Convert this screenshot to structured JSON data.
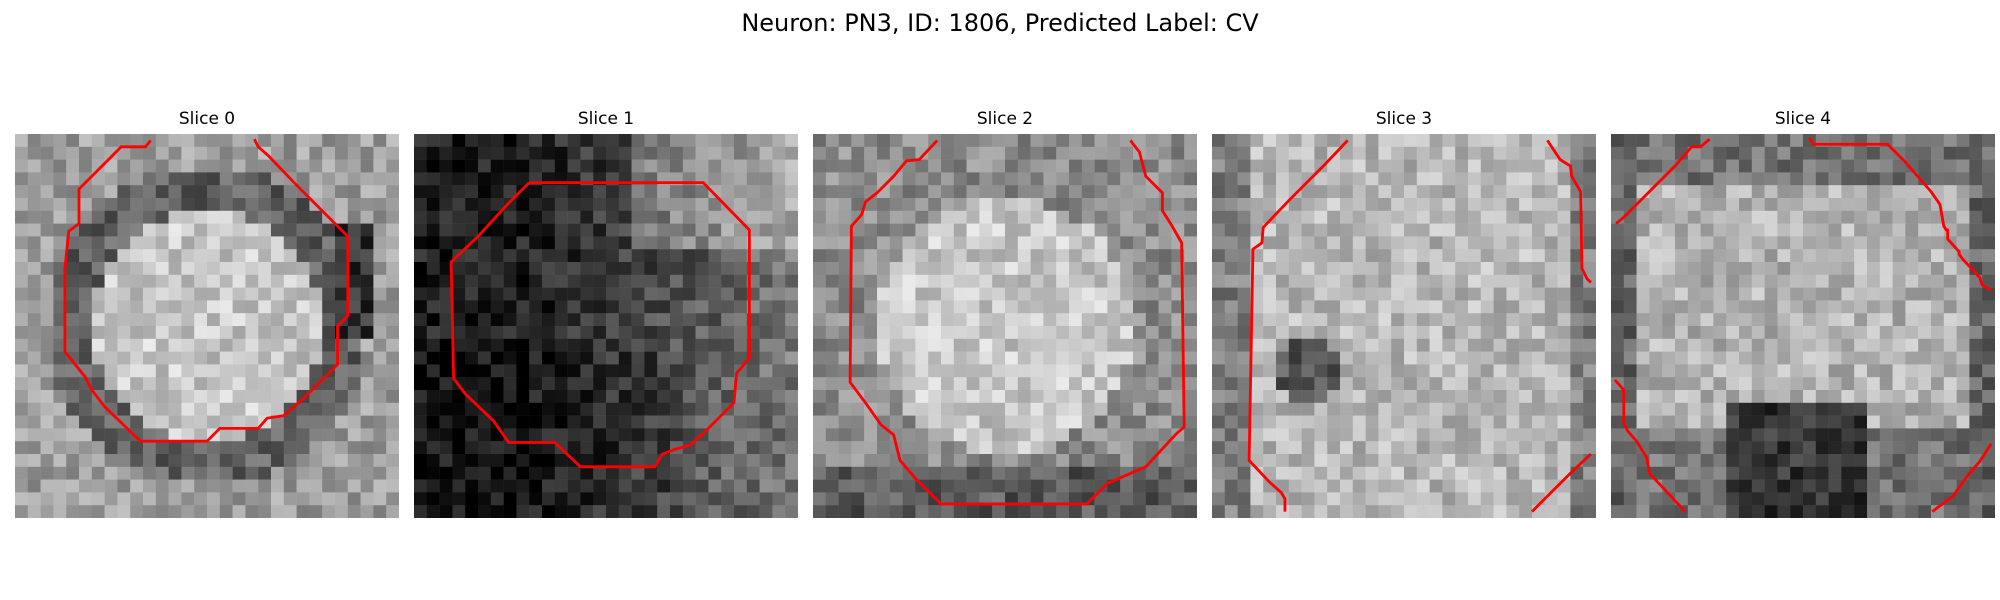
{
  "figure": {
    "title": "Neuron: PN3, ID: 1806, Predicted Label: CV",
    "panels": [
      {
        "title": "Slice 0",
        "pattern": "ring-dark"
      },
      {
        "title": "Slice 1",
        "pattern": "dark-left"
      },
      {
        "title": "Slice 2",
        "pattern": "bright-center"
      },
      {
        "title": "Slice 3",
        "pattern": "speckled"
      },
      {
        "title": "Slice 4",
        "pattern": "dark-bottom"
      }
    ],
    "contour_color": "#ff0000",
    "colormap": "gray"
  }
}
